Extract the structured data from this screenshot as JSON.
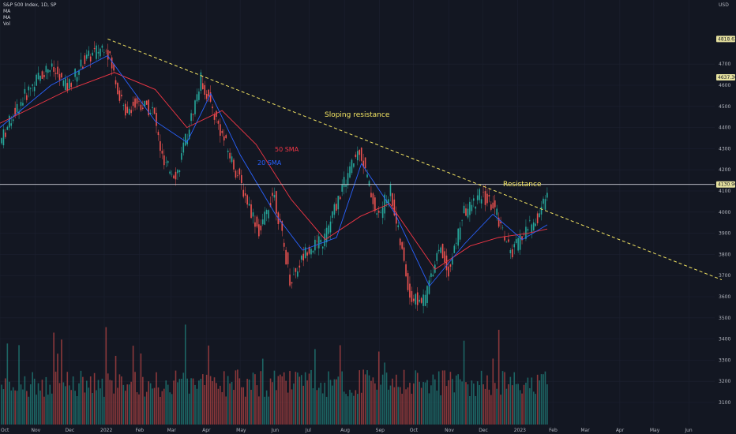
{
  "legend": {
    "symbol": "S&P 500 Index, 1D, SP",
    "ind1": "MA",
    "ind2": "MA",
    "ind3": "Vol"
  },
  "currency": "USD",
  "colors": {
    "background": "#131722",
    "up": "#26a69a",
    "down": "#ef5350",
    "sma20": "#2962ff",
    "sma50": "#f23645",
    "trendline": "#f5e663",
    "resistance": "#d1d4dc",
    "text": "#b2b5be"
  },
  "annotations": {
    "sloping": "Sloping resistance",
    "resistance": "Resistance",
    "sma50": "50 SMA",
    "sma20": "20 SMA"
  },
  "chart_data": {
    "type": "candlestick",
    "yticks": [
      3100,
      3200,
      3300,
      3400,
      3500,
      3600,
      3700,
      3800,
      3900,
      4000,
      4100,
      4200,
      4300,
      4400,
      4500,
      4600,
      4700
    ],
    "ylim": [
      3040,
      5010
    ],
    "price_labels": [
      {
        "text": "4818.62",
        "value": 4818.62
      },
      {
        "text": "4637.30",
        "value": 4637.3
      },
      {
        "text": "4130.96",
        "value": 4130.96
      }
    ],
    "xticks": [
      "Oct",
      "Nov",
      "Dec",
      "2022",
      "Feb",
      "Mar",
      "Apr",
      "May",
      "Jun",
      "Jul",
      "Aug",
      "Sep",
      "Oct",
      "Nov",
      "Dec",
      "2023",
      "Feb",
      "Mar",
      "Apr",
      "May",
      "Jun"
    ],
    "resistance_level": 4130.96,
    "trendline": {
      "start": [
        "2022-01-04",
        4818.62
      ],
      "end": [
        "2023-06-30",
        3680
      ]
    },
    "price_series": {
      "date": [
        "2021-10-01",
        "2021-10-15",
        "2021-11-01",
        "2021-11-15",
        "2021-12-01",
        "2021-12-15",
        "2022-01-04",
        "2022-01-20",
        "2022-02-01",
        "2022-02-15",
        "2022-02-24",
        "2022-03-08",
        "2022-03-29",
        "2022-04-15",
        "2022-05-02",
        "2022-05-20",
        "2022-06-01",
        "2022-06-16",
        "2022-07-01",
        "2022-07-15",
        "2022-08-01",
        "2022-08-16",
        "2022-09-01",
        "2022-09-12",
        "2022-09-30",
        "2022-10-12",
        "2022-10-25",
        "2022-11-03",
        "2022-11-15",
        "2022-12-01",
        "2022-12-13",
        "2022-12-28",
        "2023-01-10",
        "2023-01-20",
        "2023-01-27"
      ],
      "close": [
        4310,
        4470,
        4610,
        4690,
        4590,
        4710,
        4796,
        4480,
        4520,
        4480,
        4220,
        4180,
        4630,
        4390,
        4150,
        3900,
        4100,
        3670,
        3830,
        3860,
        4120,
        4300,
        3970,
        4110,
        3590,
        3580,
        3840,
        3720,
        3990,
        4080,
        4020,
        3800,
        3920,
        3970,
        4070
      ]
    },
    "sma20": {
      "date": [
        "2021-10-01",
        "2021-11-15",
        "2022-01-04",
        "2022-02-15",
        "2022-03-15",
        "2022-04-05",
        "2022-05-01",
        "2022-06-01",
        "2022-06-25",
        "2022-07-25",
        "2022-08-16",
        "2022-09-15",
        "2022-10-15",
        "2022-11-15",
        "2022-12-10",
        "2023-01-05",
        "2023-01-27"
      ],
      "value": [
        4400,
        4600,
        4740,
        4430,
        4330,
        4560,
        4270,
        3990,
        3820,
        3880,
        4230,
        3990,
        3650,
        3850,
        3990,
        3870,
        3940
      ]
    },
    "sma50": {
      "date": [
        "2021-10-01",
        "2021-12-01",
        "2022-01-10",
        "2022-02-15",
        "2022-03-15",
        "2022-04-15",
        "2022-05-15",
        "2022-06-15",
        "2022-07-15",
        "2022-08-15",
        "2022-09-10",
        "2022-10-20",
        "2022-11-20",
        "2022-12-15",
        "2023-01-10",
        "2023-01-27"
      ],
      "value": [
        4420,
        4580,
        4660,
        4580,
        4400,
        4480,
        4320,
        4060,
        3870,
        3980,
        4040,
        3730,
        3840,
        3880,
        3900,
        3920
      ]
    }
  }
}
